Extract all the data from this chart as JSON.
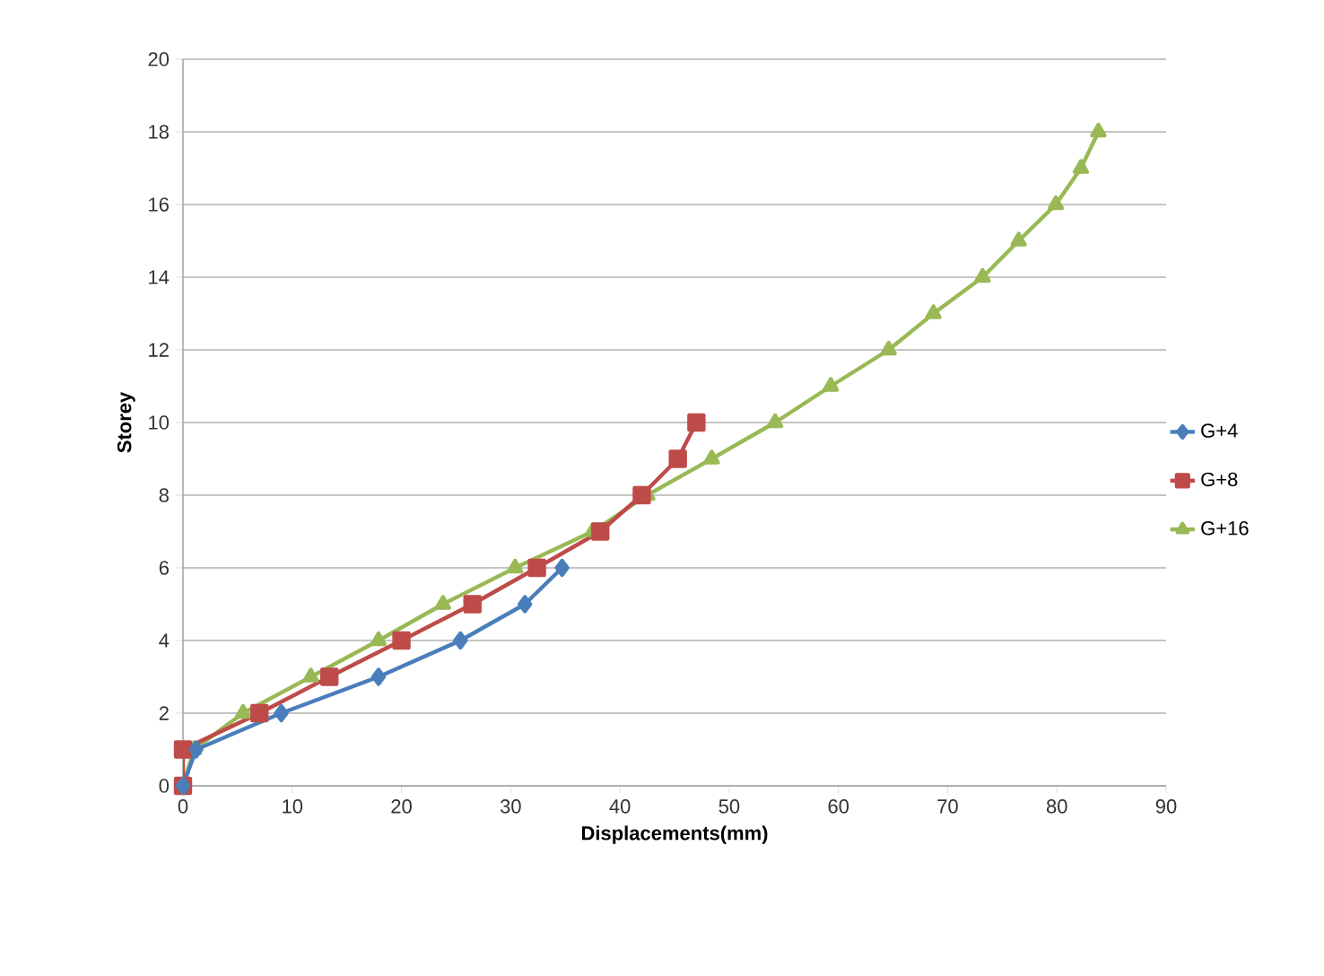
{
  "chart_data": {
    "type": "line",
    "xlabel": "Displacements(mm)",
    "ylabel": "Storey",
    "xlim": [
      0,
      90
    ],
    "ylim": [
      0,
      20
    ],
    "xticks": [
      0,
      10,
      20,
      30,
      40,
      50,
      60,
      70,
      80,
      90
    ],
    "yticks": [
      0,
      2,
      4,
      6,
      8,
      10,
      12,
      14,
      16,
      18,
      20
    ],
    "grid": "y",
    "legend": "right",
    "line_style": "solid",
    "series": [
      {
        "name": "G+4",
        "color": "#4a7ebb",
        "marker": "diamond",
        "x": [
          0,
          1.2,
          9,
          17.9,
          25.4,
          31.3,
          34.7
        ],
        "values": [
          0,
          1,
          2,
          3,
          4,
          5,
          6
        ]
      },
      {
        "name": "G+8",
        "color": "#be4b48",
        "marker": "square",
        "x": [
          0,
          0,
          7,
          13.4,
          20,
          26.5,
          32.4,
          38.2,
          42,
          45.3,
          47
        ],
        "values": [
          0,
          1,
          2,
          3,
          4,
          5,
          6,
          7,
          8,
          9,
          10
        ]
      },
      {
        "name": "G+16",
        "color": "#98b954",
        "marker": "triangle",
        "x": [
          0,
          1,
          5.5,
          11.7,
          17.9,
          23.8,
          30.4,
          37.5,
          42.5,
          48.4,
          54.2,
          59.3,
          64.6,
          68.7,
          73.2,
          76.5,
          79.9,
          82.2,
          83.8
        ],
        "values": [
          0,
          1,
          2,
          3,
          4,
          5,
          6,
          7,
          8,
          9,
          10,
          11,
          12,
          13,
          14,
          15,
          16,
          17,
          18
        ]
      }
    ]
  }
}
